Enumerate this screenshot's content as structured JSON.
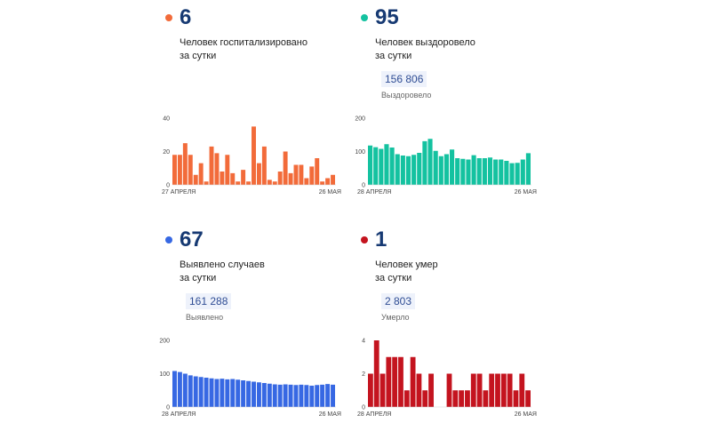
{
  "panels": [
    {
      "number": "6",
      "line1": "Человек госпитализировано",
      "line2": "за сутки",
      "total": "",
      "total_label": "",
      "color": "#f26b3a",
      "chart_data": {
        "type": "bar",
        "x_start_label": "27 АПРЕЛЯ",
        "x_end_label": "26 МАЯ",
        "ylim": [
          0,
          40
        ],
        "yticks": [
          0,
          20,
          40
        ],
        "values": [
          18,
          18,
          25,
          18,
          6,
          13,
          2,
          23,
          19,
          8,
          18,
          7,
          2,
          9,
          2,
          35,
          13,
          23,
          3,
          2,
          8,
          20,
          7,
          12,
          12,
          4,
          11,
          16,
          2,
          4,
          6
        ]
      }
    },
    {
      "number": "95",
      "line1": "Человек выздоровело",
      "line2": "за сутки",
      "total": "156 806",
      "total_label": "Выздоровело",
      "color": "#14c2a0",
      "chart_data": {
        "type": "bar",
        "x_start_label": "28 АПРЕЛЯ",
        "x_end_label": "26 МАЯ",
        "ylim": [
          0,
          200
        ],
        "yticks": [
          0,
          100,
          200
        ],
        "values": [
          118,
          113,
          108,
          122,
          112,
          92,
          88,
          86,
          90,
          96,
          131,
          138,
          102,
          86,
          92,
          106,
          80,
          78,
          76,
          89,
          80,
          80,
          82,
          76,
          76,
          72,
          65,
          66,
          76,
          95
        ]
      }
    },
    {
      "number": "67",
      "line1": "Выявлено случаев",
      "line2": "за сутки",
      "total": "161 288",
      "total_label": "Выявлено",
      "color": "#3768e3",
      "chart_data": {
        "type": "bar",
        "x_start_label": "28 АПРЕЛЯ",
        "x_end_label": "26 МАЯ",
        "ylim": [
          0,
          200
        ],
        "yticks": [
          0,
          100,
          200
        ],
        "values": [
          108,
          105,
          100,
          95,
          92,
          90,
          88,
          86,
          84,
          85,
          83,
          84,
          82,
          80,
          78,
          76,
          74,
          72,
          70,
          68,
          67,
          68,
          67,
          66,
          67,
          66,
          64,
          66,
          67,
          69,
          67
        ]
      }
    },
    {
      "number": "1",
      "line1": "Человек умер",
      "line2": "за сутки",
      "total": "2 803",
      "total_label": "Умерло",
      "color": "#c4141f",
      "chart_data": {
        "type": "bar",
        "x_start_label": "28 АПРЕЛЯ",
        "x_end_label": "26 МАЯ",
        "ylim": [
          0,
          4
        ],
        "yticks": [
          0,
          2,
          4
        ],
        "values": [
          2,
          4,
          2,
          3,
          3,
          3,
          1,
          3,
          2,
          1,
          2,
          0,
          0,
          2,
          1,
          1,
          1,
          2,
          2,
          1,
          2,
          2,
          2,
          2,
          1,
          2,
          1
        ]
      }
    }
  ]
}
